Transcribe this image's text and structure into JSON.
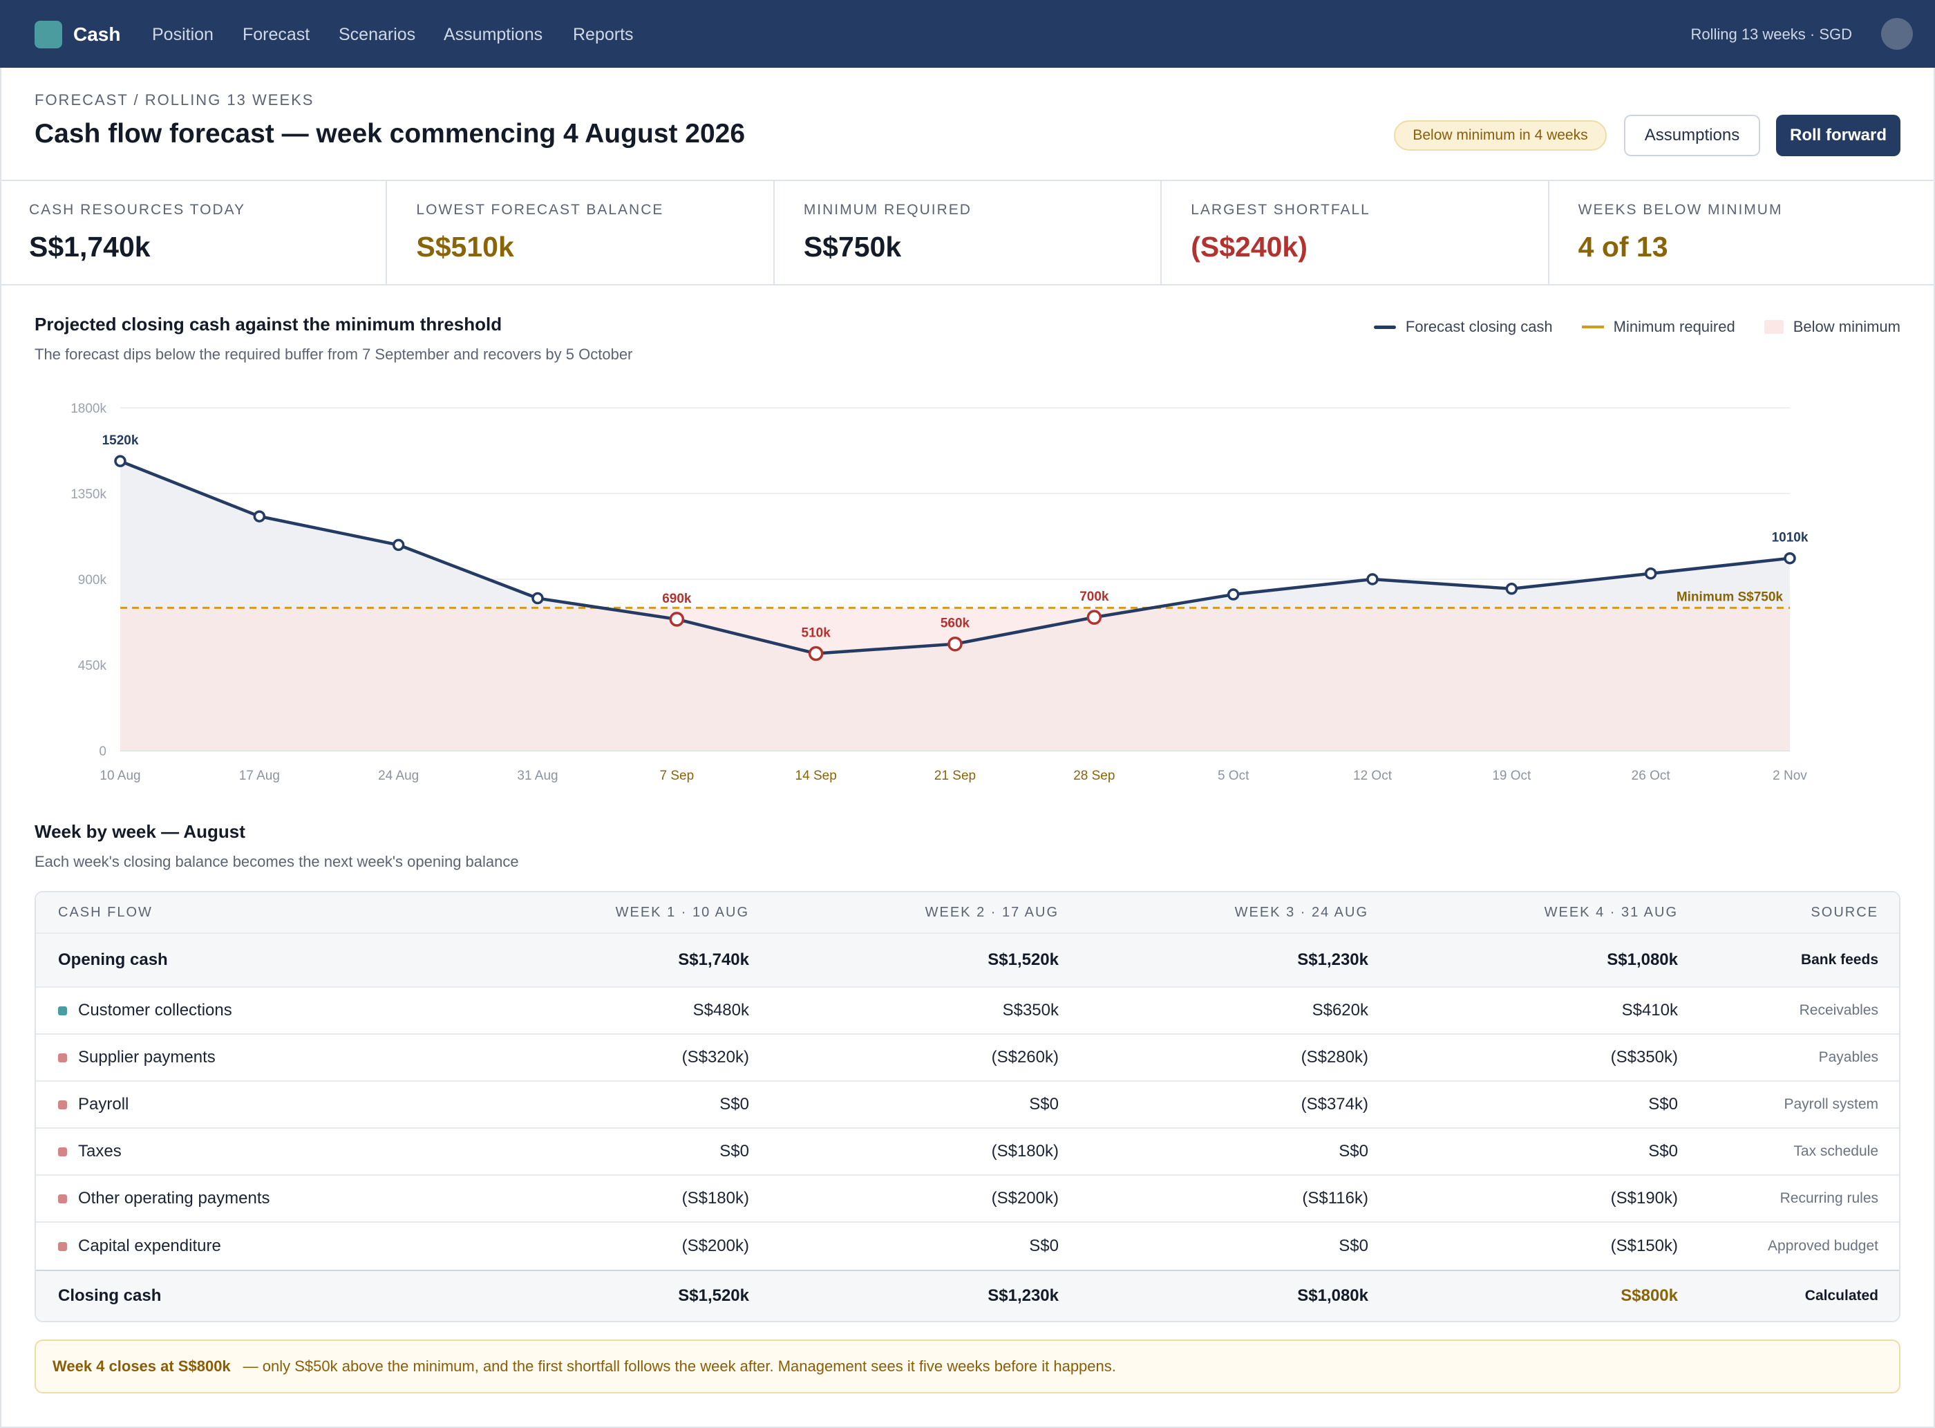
{
  "nav": {
    "brand": "Cash",
    "items": [
      "Position",
      "Forecast",
      "Scenarios",
      "Assumptions",
      "Reports"
    ],
    "context": "Rolling 13 weeks · SGD"
  },
  "header": {
    "breadcrumb": "FORECAST / ROLLING 13 WEEKS",
    "title": "Cash flow forecast — week commencing 4 August 2026",
    "badge": "Below minimum in 4 weeks",
    "assumptions_label": "Assumptions",
    "roll_forward_label": "Roll forward"
  },
  "kpis": [
    {
      "label": "CASH RESOURCES TODAY",
      "value": "S$1,740k",
      "tone": "neutral"
    },
    {
      "label": "LOWEST FORECAST BALANCE",
      "value": "S$510k",
      "tone": "amber"
    },
    {
      "label": "MINIMUM REQUIRED",
      "value": "S$750k",
      "tone": "neutral"
    },
    {
      "label": "LARGEST SHORTFALL",
      "value": "(S$240k)",
      "tone": "red"
    },
    {
      "label": "WEEKS BELOW MINIMUM",
      "value": "4 of 13",
      "tone": "amber"
    }
  ],
  "chart": {
    "title": "Projected closing cash against the minimum threshold",
    "subtitle": "The forecast dips below the required buffer from 7 September and recovers by 5 October",
    "legend": {
      "forecast": "Forecast closing cash",
      "minimum": "Minimum required",
      "below": "Below minimum"
    },
    "min_label": "Minimum S$750k"
  },
  "chart_data": {
    "type": "line",
    "x": [
      "10 Aug",
      "17 Aug",
      "24 Aug",
      "31 Aug",
      "7 Sep",
      "14 Sep",
      "21 Sep",
      "28 Sep",
      "5 Oct",
      "12 Oct",
      "19 Oct",
      "26 Oct",
      "2 Nov"
    ],
    "series": [
      {
        "name": "Forecast closing cash",
        "values": [
          1520,
          1230,
          1080,
          800,
          690,
          510,
          560,
          700,
          820,
          900,
          850,
          930,
          1010
        ]
      }
    ],
    "minimum": 750,
    "below_minimum_weeks": [
      "7 Sep",
      "14 Sep",
      "21 Sep",
      "28 Sep"
    ],
    "point_labels": {
      "0": "1520k",
      "4": "690k",
      "5": "510k",
      "6": "560k",
      "7": "700k",
      "12": "1010k"
    },
    "yticks": [
      "0",
      "450k",
      "900k",
      "1350k",
      "1800k"
    ],
    "ylim": [
      0,
      1800
    ],
    "colors": {
      "line": "#243b63",
      "minimum": "#d39a22",
      "below": "#b1322e",
      "below_fill": "#fbe7e6"
    }
  },
  "table": {
    "title": "Week by week — August",
    "subtitle": "Each week's closing balance becomes the next week's opening balance",
    "headers": [
      "CASH FLOW",
      "WEEK 1 · 10 AUG",
      "WEEK 2 · 17 AUG",
      "WEEK 3 · 24 AUG",
      "WEEK 4 · 31 AUG",
      "SOURCE"
    ],
    "opening": {
      "label": "Opening cash",
      "values": [
        "S$1,740k",
        "S$1,520k",
        "S$1,230k",
        "S$1,080k"
      ],
      "source": "Bank feeds"
    },
    "rows": [
      {
        "label": "Customer collections",
        "kind": "inflow",
        "values": [
          "S$480k",
          "S$350k",
          "S$620k",
          "S$410k"
        ],
        "source": "Receivables"
      },
      {
        "label": "Supplier payments",
        "kind": "outflow",
        "values": [
          "(S$320k)",
          "(S$260k)",
          "(S$280k)",
          "(S$350k)"
        ],
        "source": "Payables"
      },
      {
        "label": "Payroll",
        "kind": "outflow",
        "values": [
          "S$0",
          "S$0",
          "(S$374k)",
          "S$0"
        ],
        "source": "Payroll system"
      },
      {
        "label": "Taxes",
        "kind": "outflow",
        "values": [
          "S$0",
          "(S$180k)",
          "S$0",
          "S$0"
        ],
        "source": "Tax schedule"
      },
      {
        "label": "Other operating payments",
        "kind": "outflow",
        "values": [
          "(S$180k)",
          "(S$200k)",
          "(S$116k)",
          "(S$190k)"
        ],
        "source": "Recurring rules"
      },
      {
        "label": "Capital expenditure",
        "kind": "outflow",
        "values": [
          "(S$200k)",
          "S$0",
          "S$0",
          "(S$150k)"
        ],
        "source": "Approved budget"
      }
    ],
    "closing": {
      "label": "Closing cash",
      "values": [
        "S$1,520k",
        "S$1,230k",
        "S$1,080k",
        "S$800k"
      ],
      "source": "Calculated"
    }
  },
  "callout": {
    "strong": "Week 4 closes at S$800k",
    "text": "— only S$50k above the minimum, and the first shortfall follows the week after. Management sees it five weeks before it happens."
  }
}
